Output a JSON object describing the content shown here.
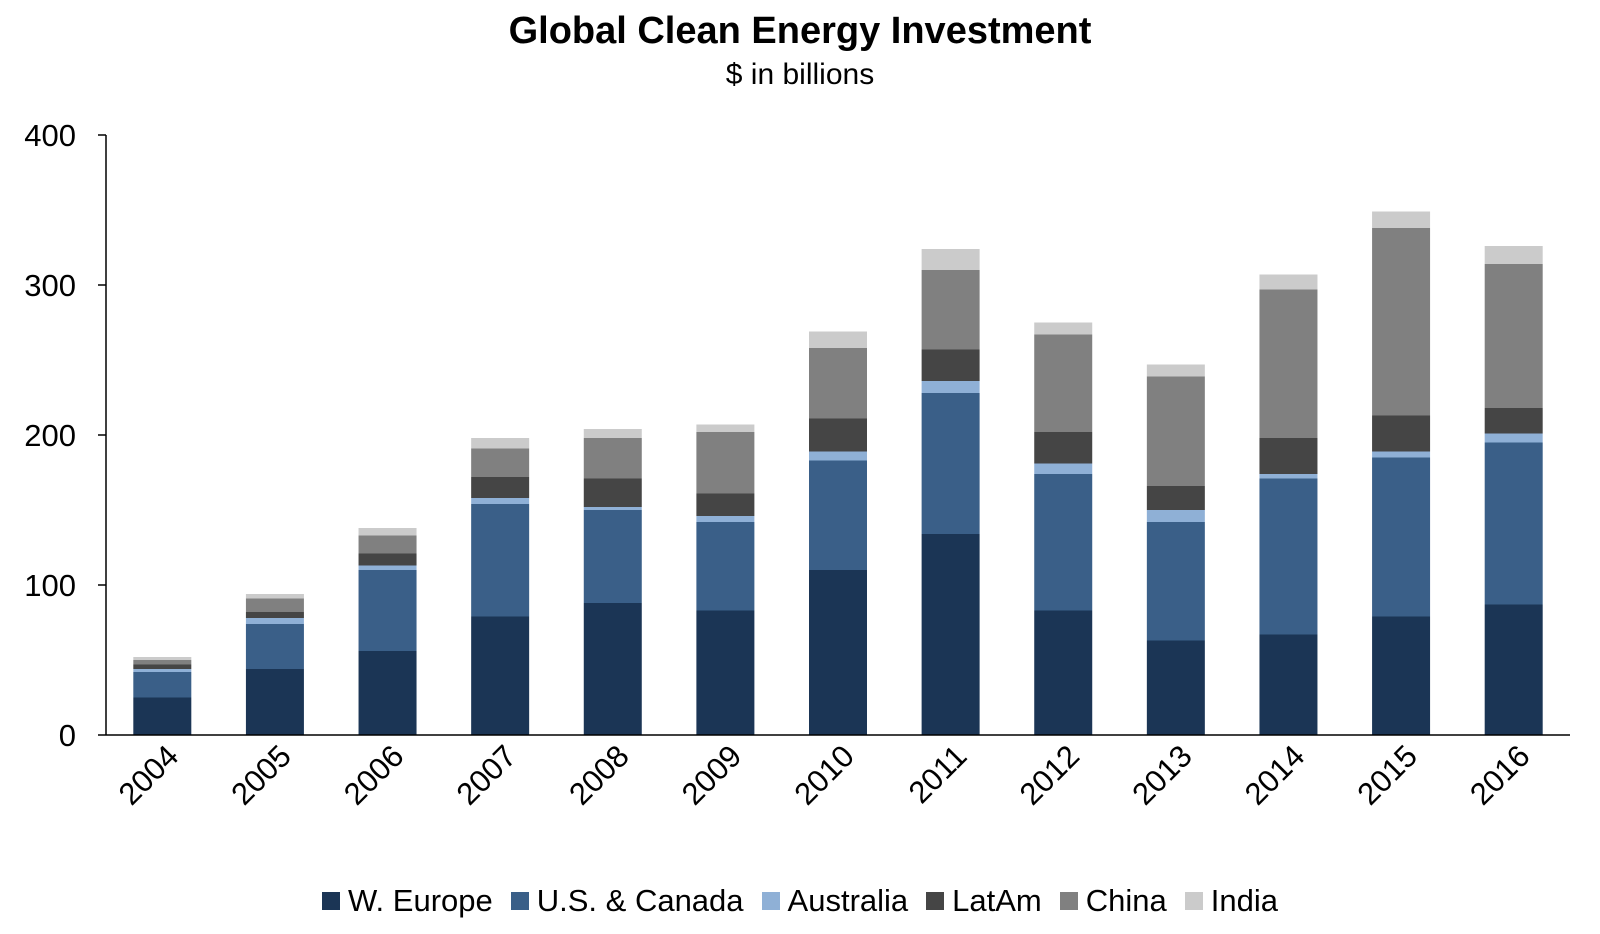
{
  "chart_data": {
    "type": "bar",
    "stacked": true,
    "title": "Global Clean Energy Investment",
    "subtitle": "$ in billions",
    "xlabel": "",
    "ylabel": "",
    "ylim": [
      0,
      400
    ],
    "yticks": [
      0,
      100,
      200,
      300,
      400
    ],
    "grid": false,
    "legend_position": "bottom",
    "categories": [
      "2004",
      "2005",
      "2006",
      "2007",
      "2008",
      "2009",
      "2010",
      "2011",
      "2012",
      "2013",
      "2014",
      "2015",
      "2016"
    ],
    "series": [
      {
        "name": "W. Europe",
        "color": "#1b3555",
        "values": [
          25,
          44,
          56,
          79,
          88,
          83,
          110,
          134,
          83,
          63,
          67,
          79,
          87
        ]
      },
      {
        "name": "U.S. & Canada",
        "color": "#3a5f88",
        "values": [
          17,
          30,
          54,
          75,
          62,
          59,
          73,
          94,
          91,
          79,
          104,
          106,
          108
        ]
      },
      {
        "name": "Australia",
        "color": "#8fb0d6",
        "values": [
          2,
          4,
          3,
          4,
          2,
          4,
          6,
          8,
          7,
          8,
          3,
          4,
          6
        ]
      },
      {
        "name": "LatAm",
        "color": "#454545",
        "values": [
          3,
          4,
          8,
          14,
          19,
          15,
          22,
          21,
          21,
          16,
          24,
          24,
          17
        ]
      },
      {
        "name": "China",
        "color": "#808080",
        "values": [
          3,
          9,
          12,
          19,
          27,
          41,
          47,
          53,
          65,
          73,
          99,
          125,
          96
        ]
      },
      {
        "name": "India",
        "color": "#cbcbcb",
        "values": [
          2,
          3,
          5,
          7,
          6,
          5,
          11,
          14,
          8,
          8,
          10,
          11,
          12
        ]
      }
    ]
  }
}
